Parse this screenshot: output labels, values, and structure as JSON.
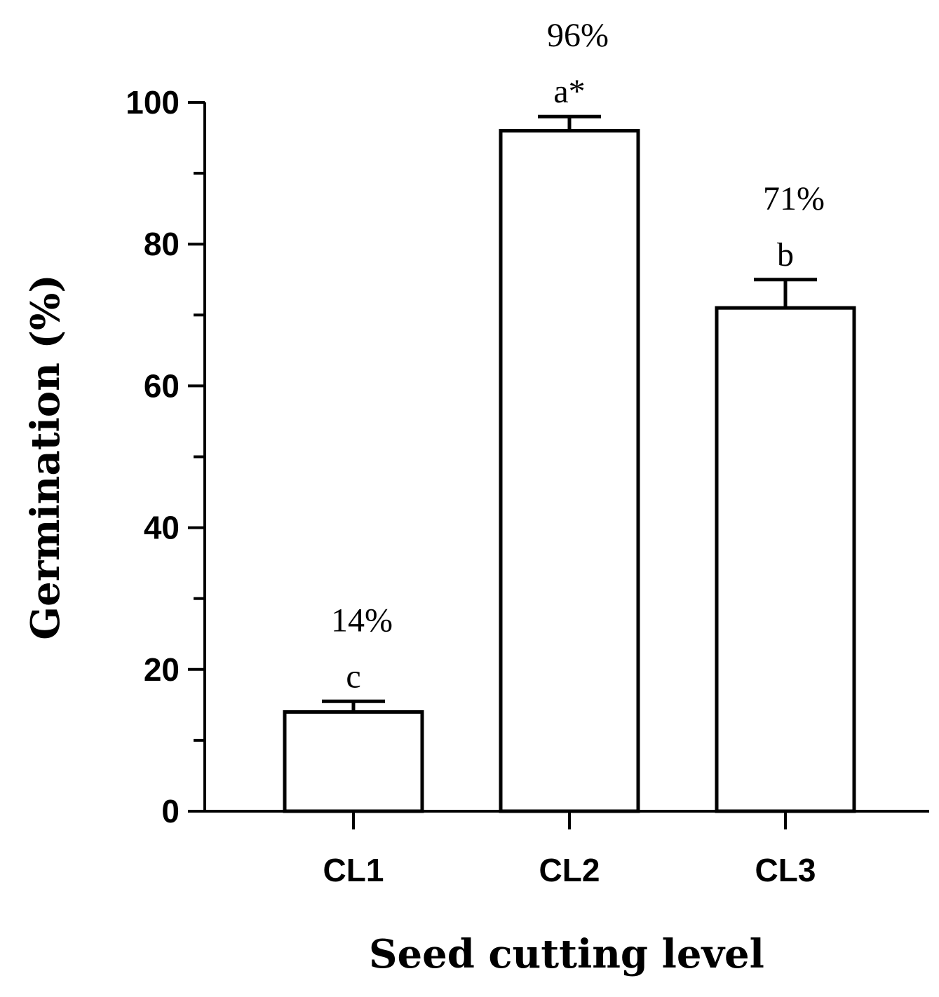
{
  "chart_data": {
    "type": "bar",
    "categories": [
      "CL1",
      "CL2",
      "CL3"
    ],
    "values": [
      14,
      96,
      71
    ],
    "errors": [
      1.5,
      2,
      4
    ],
    "value_labels": [
      "14%",
      "96%",
      "71%"
    ],
    "significance_letters": [
      "c",
      "a*",
      "b"
    ],
    "xlabel": "Seed cutting level",
    "ylabel": "Germination (%)",
    "ylim": [
      0,
      100
    ],
    "yticks": [
      "0",
      "20",
      "40",
      "60",
      "80",
      "100"
    ],
    "grid": false,
    "legend": "none",
    "bar_fill": "#ffffff",
    "bar_stroke": "#000000"
  }
}
